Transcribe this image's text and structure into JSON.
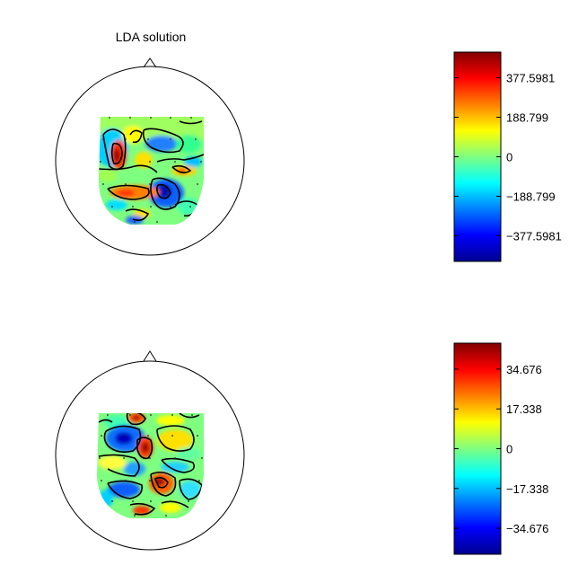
{
  "chart_data": [
    {
      "type": "heatmap",
      "subtype": "topographic scalp map",
      "title": "LDA solution",
      "colormap": "jet",
      "colorbar": {
        "ticks": [
          377.5981,
          188.799,
          0,
          -188.799,
          -377.5981
        ],
        "tick_labels": [
          "377.5981",
          "188.799",
          "0",
          "−188.799",
          "−377.5981"
        ],
        "range": [
          -500,
          500
        ]
      }
    },
    {
      "type": "heatmap",
      "subtype": "topographic scalp map",
      "title": "",
      "colormap": "jet",
      "colorbar": {
        "ticks": [
          34.676,
          17.338,
          0,
          -17.338,
          -34.676
        ],
        "tick_labels": [
          "34.676",
          "17.338",
          "0",
          "−17.338",
          "−34.676"
        ],
        "range": [
          -46,
          46
        ]
      }
    }
  ]
}
